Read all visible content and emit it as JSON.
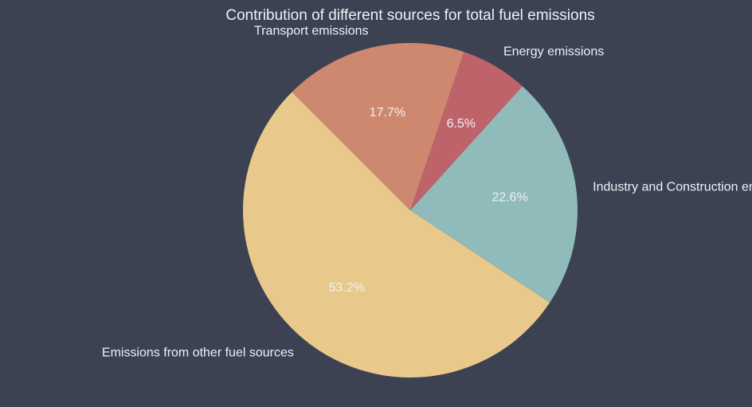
{
  "colors": {
    "background": "#3c4251",
    "text": "#eef0f4"
  },
  "chart_data": {
    "type": "pie",
    "title": "Contribution of different sources for total fuel emissions",
    "slices": [
      {
        "label": "Emissions from other fuel sources",
        "value": 53.2,
        "pct_label": "53.2%",
        "color": "#e9c98b"
      },
      {
        "label": "Industry and Construction emissions",
        "value": 22.6,
        "pct_label": "22.6%",
        "color": "#90bbba"
      },
      {
        "label": "Energy emissions",
        "value": 6.5,
        "pct_label": "6.5%",
        "color": "#bf636b"
      },
      {
        "label": "Transport emissions",
        "value": 17.7,
        "pct_label": "17.7%",
        "color": "#cf8870"
      }
    ],
    "start_angle_deg": 135,
    "direction": "counterclockwise",
    "legend": false
  }
}
